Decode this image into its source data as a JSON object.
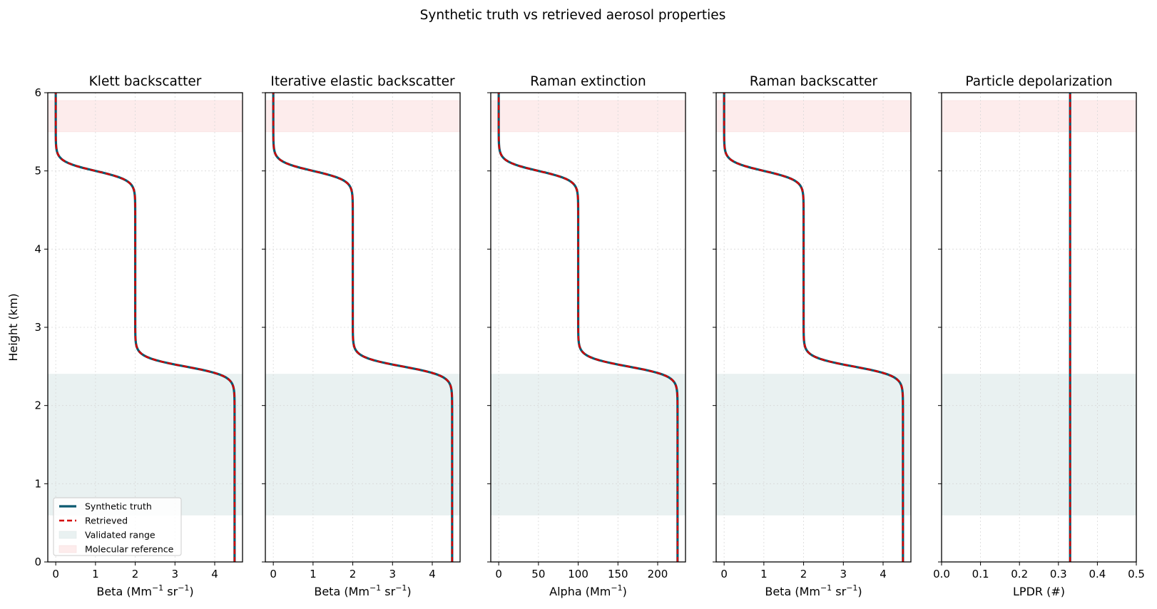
{
  "suptitle": "Synthetic truth vs retrieved aerosol properties",
  "colors": {
    "truth": "#0b5a70",
    "retrieved": "#d40000",
    "validated": "#e9f1f1",
    "molecular": "#fdecec",
    "grid": "#d8d8d8"
  },
  "chart_data": [
    {
      "type": "line",
      "title": "Klett backscatter",
      "xlabel_main": "Beta (Mm",
      "xlabel_exp1": "−1",
      "xlabel_mid": " sr",
      "xlabel_exp2": "−1",
      "xlabel_end": ")",
      "ylabel": "Height (km)",
      "xlim": [
        -0.2,
        4.7
      ],
      "ylim": [
        0,
        6
      ],
      "xticks": [
        0,
        1,
        2,
        3,
        4
      ],
      "yticks": [
        0,
        1,
        2,
        3,
        4,
        5,
        6
      ],
      "grid": true,
      "validated_range_km": [
        0.6,
        2.4
      ],
      "molecular_reference_km": [
        5.5,
        5.9
      ],
      "profile": {
        "bottom": 4.5,
        "middle": 2.0,
        "top": 0.0,
        "step1_height_km": 2.5,
        "step2_height_km": 5.0,
        "transition_width_km": 0.06
      },
      "series": [
        {
          "name": "Synthetic truth"
        },
        {
          "name": "Retrieved"
        }
      ],
      "legend": {
        "placement": "lower-left",
        "entries": [
          "Synthetic truth",
          "Retrieved",
          "Validated range",
          "Molecular reference"
        ]
      }
    },
    {
      "type": "line",
      "title": "Iterative elastic backscatter",
      "xlabel_main": "Beta (Mm",
      "xlabel_exp1": "−1",
      "xlabel_mid": " sr",
      "xlabel_exp2": "−1",
      "xlabel_end": ")",
      "xlim": [
        -0.2,
        4.7
      ],
      "ylim": [
        0,
        6
      ],
      "xticks": [
        0,
        1,
        2,
        3,
        4
      ],
      "grid": true,
      "validated_range_km": [
        0.6,
        2.4
      ],
      "molecular_reference_km": [
        5.5,
        5.9
      ],
      "profile": {
        "bottom": 4.5,
        "middle": 2.0,
        "top": 0.0,
        "step1_height_km": 2.5,
        "step2_height_km": 5.0,
        "transition_width_km": 0.06
      }
    },
    {
      "type": "line",
      "title": "Raman extinction",
      "xlabel_main": "Alpha (Mm",
      "xlabel_exp1": "−1",
      "xlabel_mid": "",
      "xlabel_exp2": "",
      "xlabel_end": ")",
      "xlim": [
        -10,
        235
      ],
      "ylim": [
        0,
        6
      ],
      "xticks": [
        0,
        50,
        100,
        150,
        200
      ],
      "grid": true,
      "validated_range_km": [
        0.6,
        2.4
      ],
      "molecular_reference_km": [
        5.5,
        5.9
      ],
      "profile": {
        "bottom": 225,
        "middle": 100,
        "top": 0,
        "step1_height_km": 2.5,
        "step2_height_km": 5.0,
        "transition_width_km": 0.06
      }
    },
    {
      "type": "line",
      "title": "Raman backscatter",
      "xlabel_main": "Beta (Mm",
      "xlabel_exp1": "−1",
      "xlabel_mid": " sr",
      "xlabel_exp2": "−1",
      "xlabel_end": ")",
      "xlim": [
        -0.2,
        4.7
      ],
      "ylim": [
        0,
        6
      ],
      "xticks": [
        0,
        1,
        2,
        3,
        4
      ],
      "grid": true,
      "validated_range_km": [
        0.6,
        2.4
      ],
      "molecular_reference_km": [
        5.5,
        5.9
      ],
      "profile": {
        "bottom": 4.5,
        "middle": 2.0,
        "top": 0.0,
        "step1_height_km": 2.5,
        "step2_height_km": 5.0,
        "transition_width_km": 0.06
      }
    },
    {
      "type": "line",
      "title": "Particle depolarization",
      "xlabel_main": "LPDR (#)",
      "xlabel_exp1": "",
      "xlabel_mid": "",
      "xlabel_exp2": "",
      "xlabel_end": "",
      "xlim": [
        0,
        0.5
      ],
      "ylim": [
        0,
        6
      ],
      "xticks": [
        0.0,
        0.1,
        0.2,
        0.3,
        0.4,
        0.5
      ],
      "xtick_labels": [
        "0.0",
        "0.1",
        "0.2",
        "0.3",
        "0.4",
        "0.5"
      ],
      "grid": true,
      "validated_range_km": [
        0.6,
        2.4
      ],
      "molecular_reference_km": [
        5.5,
        5.9
      ],
      "profile": {
        "bottom": 0.33,
        "middle": 0.33,
        "top": 0.33,
        "step1_height_km": 2.5,
        "step2_height_km": 5.0,
        "transition_width_km": 0.06
      }
    }
  ]
}
